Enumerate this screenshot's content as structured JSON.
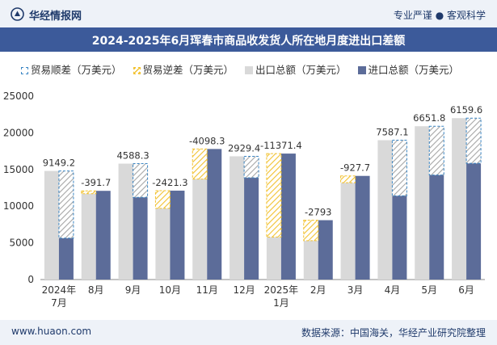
{
  "header": {
    "site_name": "华经情报网",
    "slogan": "专业严谨 ● 客观科学"
  },
  "footer": {
    "website": "www.huaon.com",
    "source": "数据来源：中国海关，华经产业研究院整理"
  },
  "colors": {
    "export_total": "#d9d9d9",
    "import_total": "#5c6c99",
    "surplus_line": "#3b86c4",
    "deficit_line": "#f2c230"
  },
  "chart_data": {
    "type": "bar",
    "title": "2024-2025年6月珲春市商品收发货人所在地月度进出口差额",
    "categories": [
      "2024年\n7月",
      "8月",
      "9月",
      "10月",
      "11月",
      "12月",
      "2025年\n1月",
      "2月",
      "3月",
      "4月",
      "5月",
      "6月"
    ],
    "ylim": [
      0,
      25000
    ],
    "yticks": [
      0,
      5000,
      10000,
      15000,
      20000,
      25000
    ],
    "legend": [
      "贸易顺差（万美元）",
      "贸易逆差（万美元）",
      "出口总额（万美元）",
      "进口总额（万美元）"
    ],
    "series": [
      {
        "name": "出口总额（万美元）",
        "values": [
          14800,
          11700,
          15800,
          9700,
          13700,
          16800,
          5800,
          5300,
          13200,
          19000,
          20900,
          22000
        ]
      },
      {
        "name": "进口总额（万美元）",
        "values": [
          5650,
          12092,
          11212,
          12121,
          17798,
          13871,
          17171,
          8093,
          14128,
          11413,
          14248,
          15840
        ]
      }
    ],
    "balance": {
      "values": [
        9149.2,
        -391.7,
        4588.3,
        -2421.3,
        -4098.3,
        2929.4,
        -11371.4,
        -2793,
        -927.7,
        7587.1,
        6651.8,
        6159.6
      ],
      "labels": [
        "9149.2",
        "-391.7",
        "4588.3",
        "-2421.3",
        "-4098.3",
        "2929.4",
        "-11371.4",
        "-2793",
        "-927.7",
        "7587.1",
        "6651.8",
        "6159.6"
      ]
    }
  }
}
